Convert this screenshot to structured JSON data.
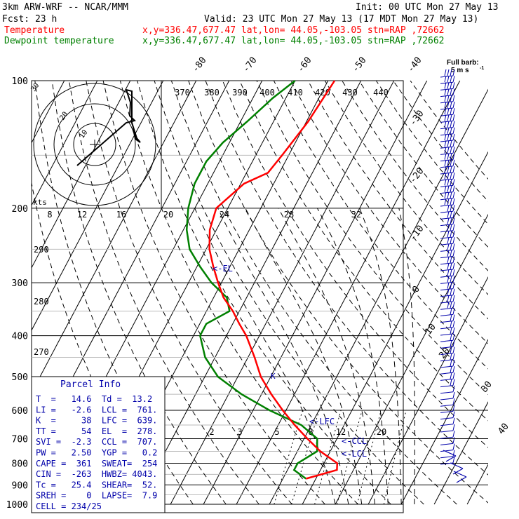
{
  "header": {
    "model": "3km ARW-WRF -- NCAR/MMM",
    "init": "Init: 00 UTC Mon 27 May 13",
    "fcst": "Fcst:    23 h",
    "valid": "Valid: 23 UTC Mon 27 May 13 (17 MDT Mon 27 May 13)",
    "temp_label": "Temperature",
    "temp_loc": "x,y=336.47,677.47   lat,lon= 44.05,-103.05  stn=RAP ,72662",
    "dew_label": "Dewpoint temperature",
    "dew_loc": "x,y=336.47,677.47   lat,lon= 44.05,-103.05  stn=RAP ,72662"
  },
  "barb_legend": {
    "line1": "Full barb:",
    "line2": "5 m s",
    "sup": "-1"
  },
  "colors": {
    "temperature": "#ff0000",
    "dewpoint": "#008000",
    "barbs": "#0000aa",
    "annot": "#0000aa"
  },
  "chart_data": {
    "type": "skew-t",
    "pressure_levels": [
      100,
      200,
      300,
      400,
      500,
      600,
      700,
      800,
      900,
      1000
    ],
    "pressure_labels": [
      "100",
      "200",
      "300",
      "400",
      "500",
      "600",
      "700",
      "800",
      "900",
      "1000"
    ],
    "isotherm_labels": [
      "-80",
      "-70",
      "-60",
      "-50",
      "-40",
      "-30",
      "-20",
      "-10",
      "0",
      "10",
      "20",
      "30",
      "40"
    ],
    "theta_e_labels": [
      "370",
      "380",
      "390",
      "400",
      "410",
      "420",
      "430",
      "440"
    ],
    "dry_adiabat_labels": [
      "290",
      "280",
      "270"
    ],
    "mixing_ratio_labels": [
      "2",
      "3",
      "5",
      "8",
      "12",
      "20"
    ],
    "temperature_profile": {
      "name": "Temperature",
      "pressure": [
        100,
        125,
        150,
        165,
        175,
        200,
        225,
        250,
        275,
        300,
        325,
        350,
        375,
        400,
        450,
        500,
        550,
        600,
        650,
        700,
        750,
        800,
        830,
        870
      ],
      "temp_c": [
        -58,
        -59.5,
        -62,
        -63.5,
        -69,
        -73.5,
        -72,
        -69,
        -65,
        -61,
        -57,
        -52,
        -48,
        -44,
        -38,
        -33,
        -27,
        -21,
        -15,
        -9,
        -3,
        4,
        5,
        -3
      ]
    },
    "dewpoint_profile": {
      "name": "Dewpoint temperature",
      "pressure": [
        100,
        110,
        125,
        140,
        155,
        175,
        200,
        225,
        250,
        275,
        300,
        325,
        350,
        375,
        400,
        450,
        500,
        550,
        600,
        650,
        700,
        750,
        800,
        830,
        870
      ],
      "dewpt_c": [
        -70,
        -74,
        -78,
        -82,
        -84,
        -84,
        -82,
        -79,
        -75,
        -69,
        -63,
        -56,
        -53,
        -58,
        -58,
        -53,
        -46,
        -36,
        -25,
        -13,
        -6,
        -4,
        -8,
        -8,
        -3
      ]
    },
    "hodograph": {
      "title": "kts",
      "rings": [
        "10",
        "20",
        "30"
      ],
      "ring_speeds": [
        10,
        20,
        30
      ]
    },
    "hodograph_speed_axis": [
      "8",
      "12",
      "16",
      "20",
      "24",
      "28",
      "32"
    ],
    "annotations": {
      "el": "<-EL",
      "lfc": "<-LFC",
      "ccl": "<-CCL",
      "lcl": "<-LCL",
      "k": "K"
    }
  },
  "parcel_info": {
    "title": "Parcel Info",
    "rows": [
      "T  =   14.6  Td =  13.2",
      "LI =   -2.6  LCL =  761.",
      "K  =     38  LFC =  639.",
      "TT =     54  EL  =  278.",
      "SVI =  -2.3  CCL =  707.",
      "PW =   2.50  YGP =   0.2",
      "CAPE =  361  SWEAT=  254",
      "CIN =  -263  HWBZ= 4043.",
      "Tc =   25.4  SHEAR=  52.",
      "SREH =    0  LAPSE=  7.9",
      "CELL = 234/25"
    ]
  }
}
